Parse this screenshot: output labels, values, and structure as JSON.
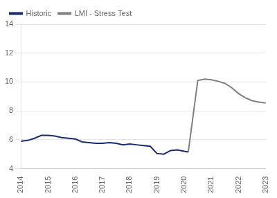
{
  "chart_data": {
    "type": "line",
    "series": [
      {
        "name": "Historic",
        "color": "#1a2b6b",
        "x": [
          2014.0,
          2014.25,
          2014.5,
          2014.75,
          2015.0,
          2015.25,
          2015.5,
          2015.75,
          2016.0,
          2016.25,
          2016.5,
          2016.75,
          2017.0,
          2017.25,
          2017.5,
          2017.75,
          2018.0,
          2018.25,
          2018.5,
          2018.75,
          2019.0,
          2019.25,
          2019.5,
          2019.75,
          2020.0,
          2020.15
        ],
        "values": [
          5.9,
          5.95,
          6.1,
          6.3,
          6.3,
          6.25,
          6.15,
          6.1,
          6.05,
          5.85,
          5.8,
          5.75,
          5.75,
          5.8,
          5.75,
          5.65,
          5.7,
          5.65,
          5.6,
          5.55,
          5.05,
          5.0,
          5.25,
          5.3,
          5.2,
          5.15
        ]
      },
      {
        "name": "LMI - Stress Test",
        "color": "#7f7f7f",
        "x": [
          2020.15,
          2020.5,
          2020.75,
          2021.0,
          2021.25,
          2021.5,
          2021.75,
          2022.0,
          2022.25,
          2022.5,
          2022.75,
          2023.0
        ],
        "values": [
          5.15,
          10.1,
          10.2,
          10.15,
          10.05,
          9.9,
          9.6,
          9.2,
          8.9,
          8.7,
          8.6,
          8.55
        ]
      }
    ],
    "xlim": [
      2014,
      2023
    ],
    "xticks": [
      2014,
      2015,
      2016,
      2017,
      2018,
      2019,
      2020,
      2021,
      2022,
      2023
    ],
    "ylim": [
      4,
      14
    ],
    "yticks": [
      4,
      6,
      8,
      10,
      12,
      14
    ],
    "grid": "y",
    "legend": "upper left"
  }
}
